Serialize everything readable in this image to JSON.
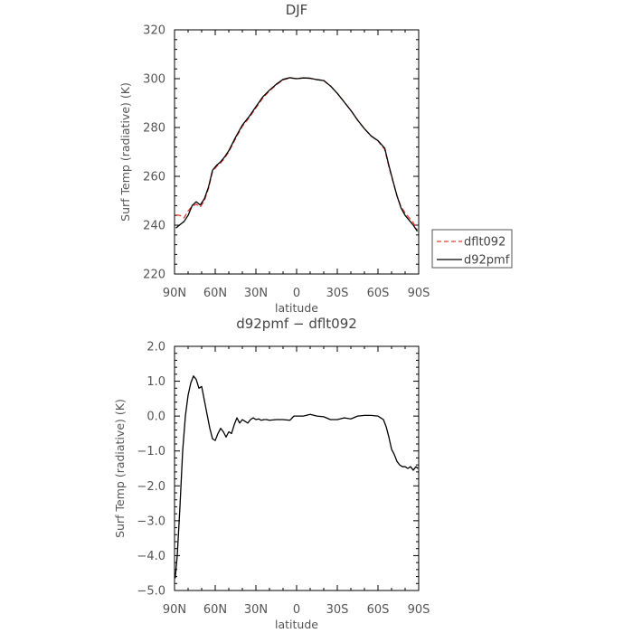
{
  "chart_data": [
    {
      "type": "line",
      "title": "DJF",
      "xlabel": "latitude",
      "ylabel": "Surf Temp (radiative) (K)",
      "xlim": [
        90,
        -90
      ],
      "ylim": [
        220,
        320
      ],
      "xticks": [
        90,
        60,
        30,
        0,
        -30,
        -60,
        -90
      ],
      "xtick_labels": [
        "90N",
        "60N",
        "30N",
        "0",
        "30S",
        "60S",
        "90S"
      ],
      "yticks": [
        220,
        240,
        260,
        280,
        300,
        320
      ],
      "ytick_labels": [
        "220",
        "240",
        "260",
        "280",
        "300",
        "320"
      ],
      "grid": false,
      "legend_position": "outside-right",
      "series": [
        {
          "name": "dflt092",
          "color": "#e8392b",
          "dashed": true,
          "x": [
            89,
            86,
            83,
            80,
            77,
            74,
            71,
            68,
            65,
            62,
            59,
            56,
            53,
            50,
            45,
            40,
            35,
            30,
            25,
            20,
            15,
            10,
            5,
            0,
            -5,
            -10,
            -15,
            -20,
            -25,
            -30,
            -35,
            -40,
            -45,
            -50,
            -55,
            -60,
            -65,
            -68,
            -71,
            -74,
            -77,
            -80,
            -83,
            -86,
            -89
          ],
          "y": [
            244.2,
            244.0,
            243.0,
            245.8,
            247.8,
            248.6,
            247.5,
            250.0,
            255.0,
            262.0,
            264.0,
            265.5,
            267.5,
            270.0,
            275.5,
            280.5,
            284.0,
            288.0,
            292.0,
            295.0,
            297.5,
            299.5,
            300.3,
            300.0,
            300.3,
            300.1,
            299.6,
            299.3,
            297.0,
            294.0,
            290.5,
            287.0,
            283.0,
            279.5,
            276.5,
            274.5,
            271.0,
            264.0,
            258.0,
            252.0,
            247.5,
            245.0,
            243.0,
            241.0,
            238.0
          ]
        },
        {
          "name": "d92pmf",
          "color": "#000000",
          "dashed": false,
          "x": [
            89,
            86,
            83,
            80,
            77,
            74,
            71,
            68,
            65,
            62,
            59,
            56,
            53,
            50,
            45,
            40,
            35,
            30,
            25,
            20,
            15,
            10,
            5,
            0,
            -5,
            -10,
            -15,
            -20,
            -25,
            -30,
            -35,
            -40,
            -45,
            -50,
            -55,
            -60,
            -65,
            -68,
            -71,
            -74,
            -77,
            -80,
            -83,
            -86,
            -89
          ],
          "y": [
            238.8,
            240.2,
            241.5,
            244.0,
            248.0,
            249.6,
            248.3,
            250.8,
            255.5,
            262.5,
            264.5,
            266.0,
            268.0,
            270.5,
            276.0,
            281.0,
            284.5,
            288.5,
            292.5,
            295.3,
            297.7,
            299.7,
            300.4,
            300.0,
            300.3,
            300.2,
            299.6,
            299.2,
            297.0,
            294.0,
            290.5,
            287.0,
            283.0,
            279.5,
            276.5,
            274.6,
            271.5,
            264.5,
            258.2,
            252.0,
            247.0,
            244.0,
            242.0,
            240.0,
            237.5
          ]
        }
      ]
    },
    {
      "type": "line",
      "title": "d92pmf − dflt092",
      "xlabel": "latitude",
      "ylabel": "Surf Temp (radiative) (K)",
      "xlim": [
        90,
        -90
      ],
      "ylim": [
        -5.0,
        2.0
      ],
      "xticks": [
        90,
        60,
        30,
        0,
        -30,
        -60,
        -90
      ],
      "xtick_labels": [
        "90N",
        "60N",
        "30N",
        "0",
        "30S",
        "60S",
        "90S"
      ],
      "yticks": [
        -5.0,
        -4.0,
        -3.0,
        -2.0,
        -1.0,
        0.0,
        1.0,
        2.0
      ],
      "ytick_labels": [
        "−5.0",
        "−4.0",
        "−3.0",
        "−2.0",
        "−1.0",
        "0.0",
        "1.0",
        "2.0"
      ],
      "grid": false,
      "series": [
        {
          "name": "d92pmf - dflt092",
          "color": "#000000",
          "dashed": false,
          "x": [
            89.5,
            88,
            86,
            84,
            82,
            80,
            78,
            76,
            74,
            72,
            70,
            68,
            66,
            64,
            62,
            60,
            58,
            56,
            54,
            52,
            50,
            48,
            46,
            44,
            42,
            40,
            38,
            36,
            34,
            32,
            30,
            28,
            26,
            24,
            22,
            20,
            15,
            10,
            5,
            2,
            0,
            -5,
            -10,
            -15,
            -20,
            -25,
            -30,
            -35,
            -40,
            -45,
            -50,
            -55,
            -60,
            -62,
            -64,
            -66,
            -68,
            -70,
            -72,
            -74,
            -76,
            -78,
            -80,
            -82,
            -84,
            -86,
            -88,
            -89.5
          ],
          "y": [
            -4.65,
            -4.0,
            -2.6,
            -1.0,
            0.0,
            0.6,
            0.95,
            1.15,
            1.05,
            0.8,
            0.85,
            0.45,
            0.05,
            -0.35,
            -0.65,
            -0.7,
            -0.5,
            -0.35,
            -0.45,
            -0.6,
            -0.45,
            -0.5,
            -0.25,
            -0.05,
            -0.2,
            -0.1,
            -0.15,
            -0.2,
            -0.1,
            -0.05,
            -0.1,
            -0.08,
            -0.12,
            -0.1,
            -0.1,
            -0.12,
            -0.1,
            -0.1,
            -0.12,
            0.0,
            0.0,
            0.0,
            0.05,
            0.0,
            -0.02,
            -0.1,
            -0.1,
            -0.05,
            -0.08,
            0.0,
            0.02,
            0.02,
            0.0,
            -0.05,
            -0.1,
            -0.3,
            -0.6,
            -0.95,
            -1.1,
            -1.3,
            -1.4,
            -1.45,
            -1.45,
            -1.5,
            -1.45,
            -1.55,
            -1.45,
            -1.5
          ]
        }
      ]
    }
  ]
}
